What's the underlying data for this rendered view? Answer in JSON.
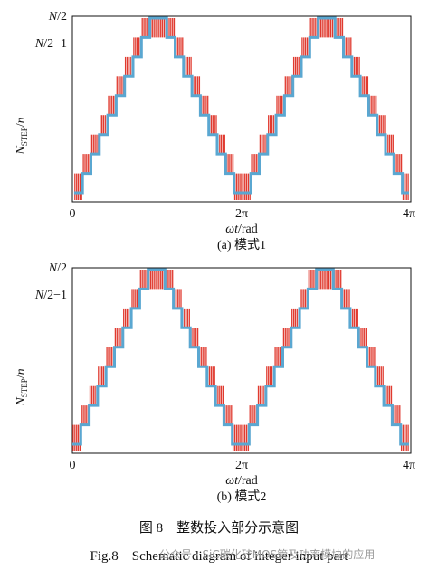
{
  "chart_data": [
    {
      "type": "line",
      "panel_label": "(a) 模式1",
      "xlabel": "ωt/rad",
      "ylabel": "N_STEP/n",
      "x_ticks": [
        "0",
        "2π",
        "4π"
      ],
      "y_ticks": [
        "N/2",
        "N/2−1"
      ],
      "series": [
        {
          "color": "#e03a2f",
          "style": "PWM switching between adjacent levels"
        },
        {
          "color": "#5aa7d1",
          "style": "staircase integer-input level"
        }
      ],
      "stair_levels": [
        0,
        1,
        2,
        3,
        4,
        5,
        6,
        7,
        8,
        9
      ],
      "levels_per_half_period": 9
    },
    {
      "type": "line",
      "panel_label": "(b) 模式2",
      "xlabel": "ωt/rad",
      "ylabel": "N_STEP/n",
      "x_ticks": [
        "0",
        "2π",
        "4π"
      ],
      "y_ticks": [
        "N/2",
        "N/2−1"
      ],
      "series": [
        {
          "color": "#e03a2f",
          "style": "PWM switching between adjacent levels"
        },
        {
          "color": "#5aa7d1",
          "style": "staircase integer-input level"
        }
      ],
      "stair_levels": [
        0,
        1,
        2,
        3,
        4,
        5,
        6,
        7,
        8,
        9
      ],
      "levels_per_half_period": 9
    }
  ],
  "caption_cn": "图 8　整数投入部分示意图",
  "caption_en": "Fig.8　Schematic diagram of integer input part",
  "watermark": "公众号 · SiC碳化硅MOS管及功率模块的应用",
  "labels": {
    "ytick_top_n": "N",
    "ytick_top_rest": "/2",
    "ytick_second_n": "N",
    "ytick_second_rest": "/2−1",
    "ylabel_n": "N",
    "ylabel_sub": "STEP",
    "ylabel_rest": "/",
    "ylabel_n2": "n",
    "xlabel_omega": "ωt",
    "xlabel_rest": "/rad",
    "x0": "0",
    "x2": "2π",
    "x4": "4π"
  }
}
